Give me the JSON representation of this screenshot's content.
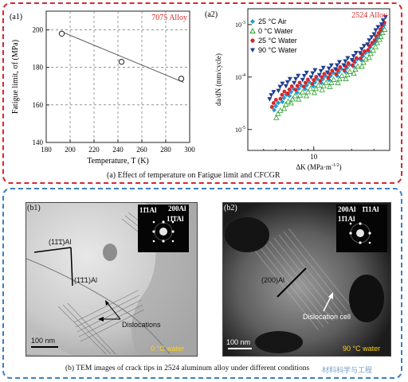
{
  "captions": {
    "top": "(a) Effect of temperature on Fatigue limit and CFCGR",
    "bottom": "(b)  TEM images of crack tips in 2524 aluminum alloy under different conditions",
    "watermark": "材料科学与工程"
  },
  "panel_a1": {
    "tag": "(a1)",
    "alloy": "7075 Alloy"
  },
  "panel_a2": {
    "tag": "(a2)",
    "alloy": "2524 Alloy"
  },
  "chart_data": [
    {
      "type": "line",
      "xlabel": "Temperature, T (K)",
      "ylabel": "Fatigue limit, σf (MPa)",
      "xlim": [
        180,
        300
      ],
      "ylim": [
        140,
        210
      ],
      "xticks": [
        "180",
        "200",
        "220",
        "240",
        "260",
        "280",
        "300"
      ],
      "yticks": [
        "140",
        "160",
        "180",
        "200"
      ],
      "grid": true,
      "points": {
        "x": [
          193,
          243,
          293
        ],
        "y": [
          198,
          183,
          174
        ]
      },
      "fit": {
        "x": [
          193,
          295
        ],
        "y": [
          199,
          172
        ]
      }
    },
    {
      "type": "scatter",
      "xlabel": "ΔK (MPa·m^-1/2)",
      "ylabel": "da/dN (mm/cycle)",
      "xscale": "log",
      "yscale": "log",
      "xlim": [
        3,
        40
      ],
      "ylim": [
        4e-06,
        0.002
      ],
      "xticks": [
        "10"
      ],
      "yticks": [
        "10^-3",
        "10^-4",
        "10^-5"
      ],
      "legend_position": "top-left",
      "series": [
        {
          "name": "25 °C Air",
          "color": "#1f9bd6",
          "marker": "diamond",
          "x": [
            5.0,
            5.8,
            6.6,
            7.6,
            8.8,
            10.2,
            11.8,
            13.6,
            15.8,
            18.3,
            21.2,
            24.5,
            28.0,
            31.5,
            34.5
          ],
          "y": [
            2.8e-05,
            4e-05,
            5.2e-05,
            6e-05,
            7e-05,
            8e-05,
            9.2e-05,
            0.000105,
            0.000125,
            0.00015,
            0.00019,
            0.00025,
            0.00037,
            0.00055,
            0.00085
          ]
        },
        {
          "name": "0 °C Water",
          "color": "#2ca02c",
          "marker": "triangle-up-open",
          "x": [
            5.2,
            6.0,
            6.8,
            7.8,
            9.0,
            10.4,
            12.0,
            13.8,
            16.0,
            18.5,
            21.4,
            24.8,
            28.3,
            31.8,
            35.0
          ],
          "y": [
            2e-05,
            3e-05,
            3.8e-05,
            4.5e-05,
            5.2e-05,
            6e-05,
            6.8e-05,
            7.8e-05,
            9.2e-05,
            0.00011,
            0.00014,
            0.00019,
            0.00028,
            0.00045,
            0.0007
          ]
        },
        {
          "name": "25 °C Water",
          "color": "#d62728",
          "marker": "circle",
          "x": [
            4.8,
            5.6,
            6.4,
            7.4,
            8.6,
            10.0,
            11.6,
            13.4,
            15.5,
            18.0,
            20.9,
            24.2,
            27.8,
            31.3,
            34.8
          ],
          "y": [
            3.2e-05,
            4.6e-05,
            5.8e-05,
            6.8e-05,
            7.8e-05,
            8.8e-05,
            0.0001,
            0.000115,
            0.000135,
            0.00016,
            0.0002,
            0.00027,
            0.00039,
            0.0006,
            0.00095
          ]
        },
        {
          "name": "90 °C Water",
          "color": "#1f3f8f",
          "marker": "triangle-down",
          "x": [
            4.6,
            5.4,
            6.2,
            7.2,
            8.4,
            9.8,
            11.4,
            13.2,
            15.3,
            17.8,
            20.7,
            24.0,
            27.5,
            31.0,
            35.5
          ],
          "y": [
            4.5e-05,
            6.5e-05,
            8e-05,
            9.2e-05,
            0.000105,
            0.000118,
            0.00013,
            0.000145,
            0.000168,
            0.0002,
            0.00025,
            0.00034,
            0.0005,
            0.00078,
            0.0012
          ]
        }
      ]
    }
  ],
  "panel_b1": {
    "tag": "(b1)",
    "plane1": "(11̄1̄)Al",
    "plane2": "(1̄1̄1)Al",
    "annotation": "Dislocations",
    "scale": "100 nm",
    "condition": "0 °C water",
    "sad": {
      "l1": "11̄1Al",
      "l2": "200Al",
      "l3": "11̄1̄Al"
    }
  },
  "panel_b2": {
    "tag": "(b2)",
    "plane": "(200)Al",
    "annotation": "Dislocation cell",
    "scale": "100 nm",
    "condition": "90 °C water",
    "sad": {
      "l1": "200Al",
      "l2": "1̄11Al",
      "l3": "11̄1Al"
    }
  }
}
